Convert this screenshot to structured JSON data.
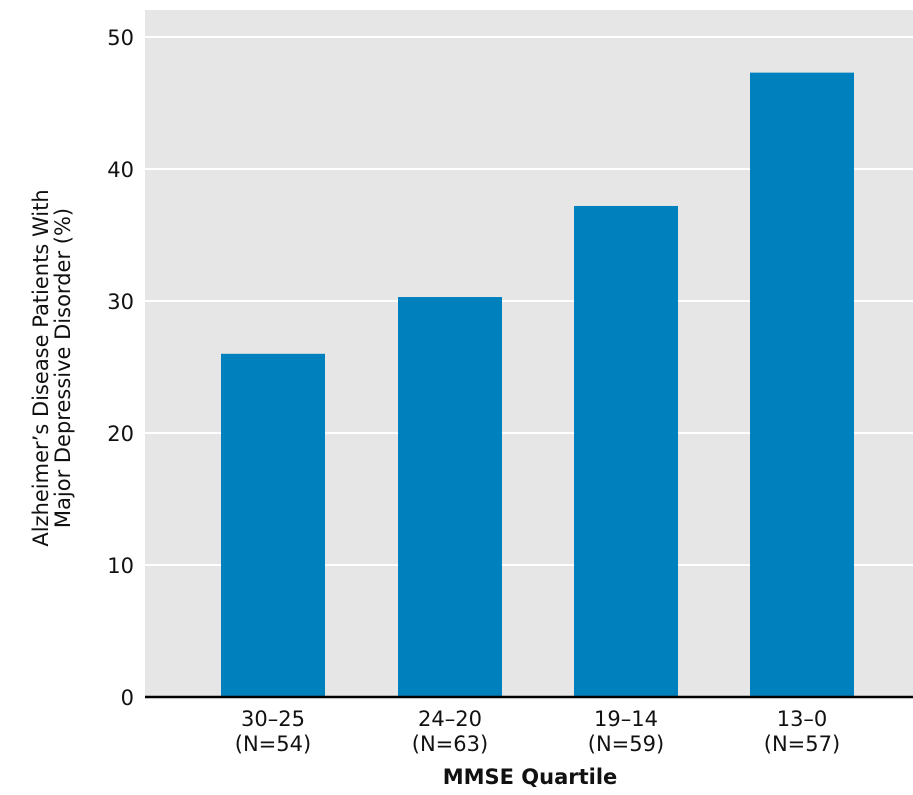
{
  "chart_data": {
    "type": "bar",
    "title": "",
    "xlabel": "MMSE Quartile",
    "ylabel_line1": "Alzheimer’s Disease Patients With",
    "ylabel_line2": "Major Depressive Disorder (%)",
    "categories": [
      "30–25",
      "24–20",
      "19–14",
      "13–0"
    ],
    "category_sublabels": [
      "(N=54)",
      "(N=63)",
      "(N=59)",
      "(N=57)"
    ],
    "values": [
      26.0,
      30.3,
      37.2,
      47.3
    ],
    "ylim": [
      0,
      50
    ],
    "yticks": [
      0,
      10,
      20,
      30,
      40,
      50
    ],
    "grid": true,
    "legend": "none",
    "colors": {
      "bar": "#0081be",
      "plot_background": "#e6e6e6",
      "gridline": "#ffffff",
      "axis": "#000000"
    }
  }
}
